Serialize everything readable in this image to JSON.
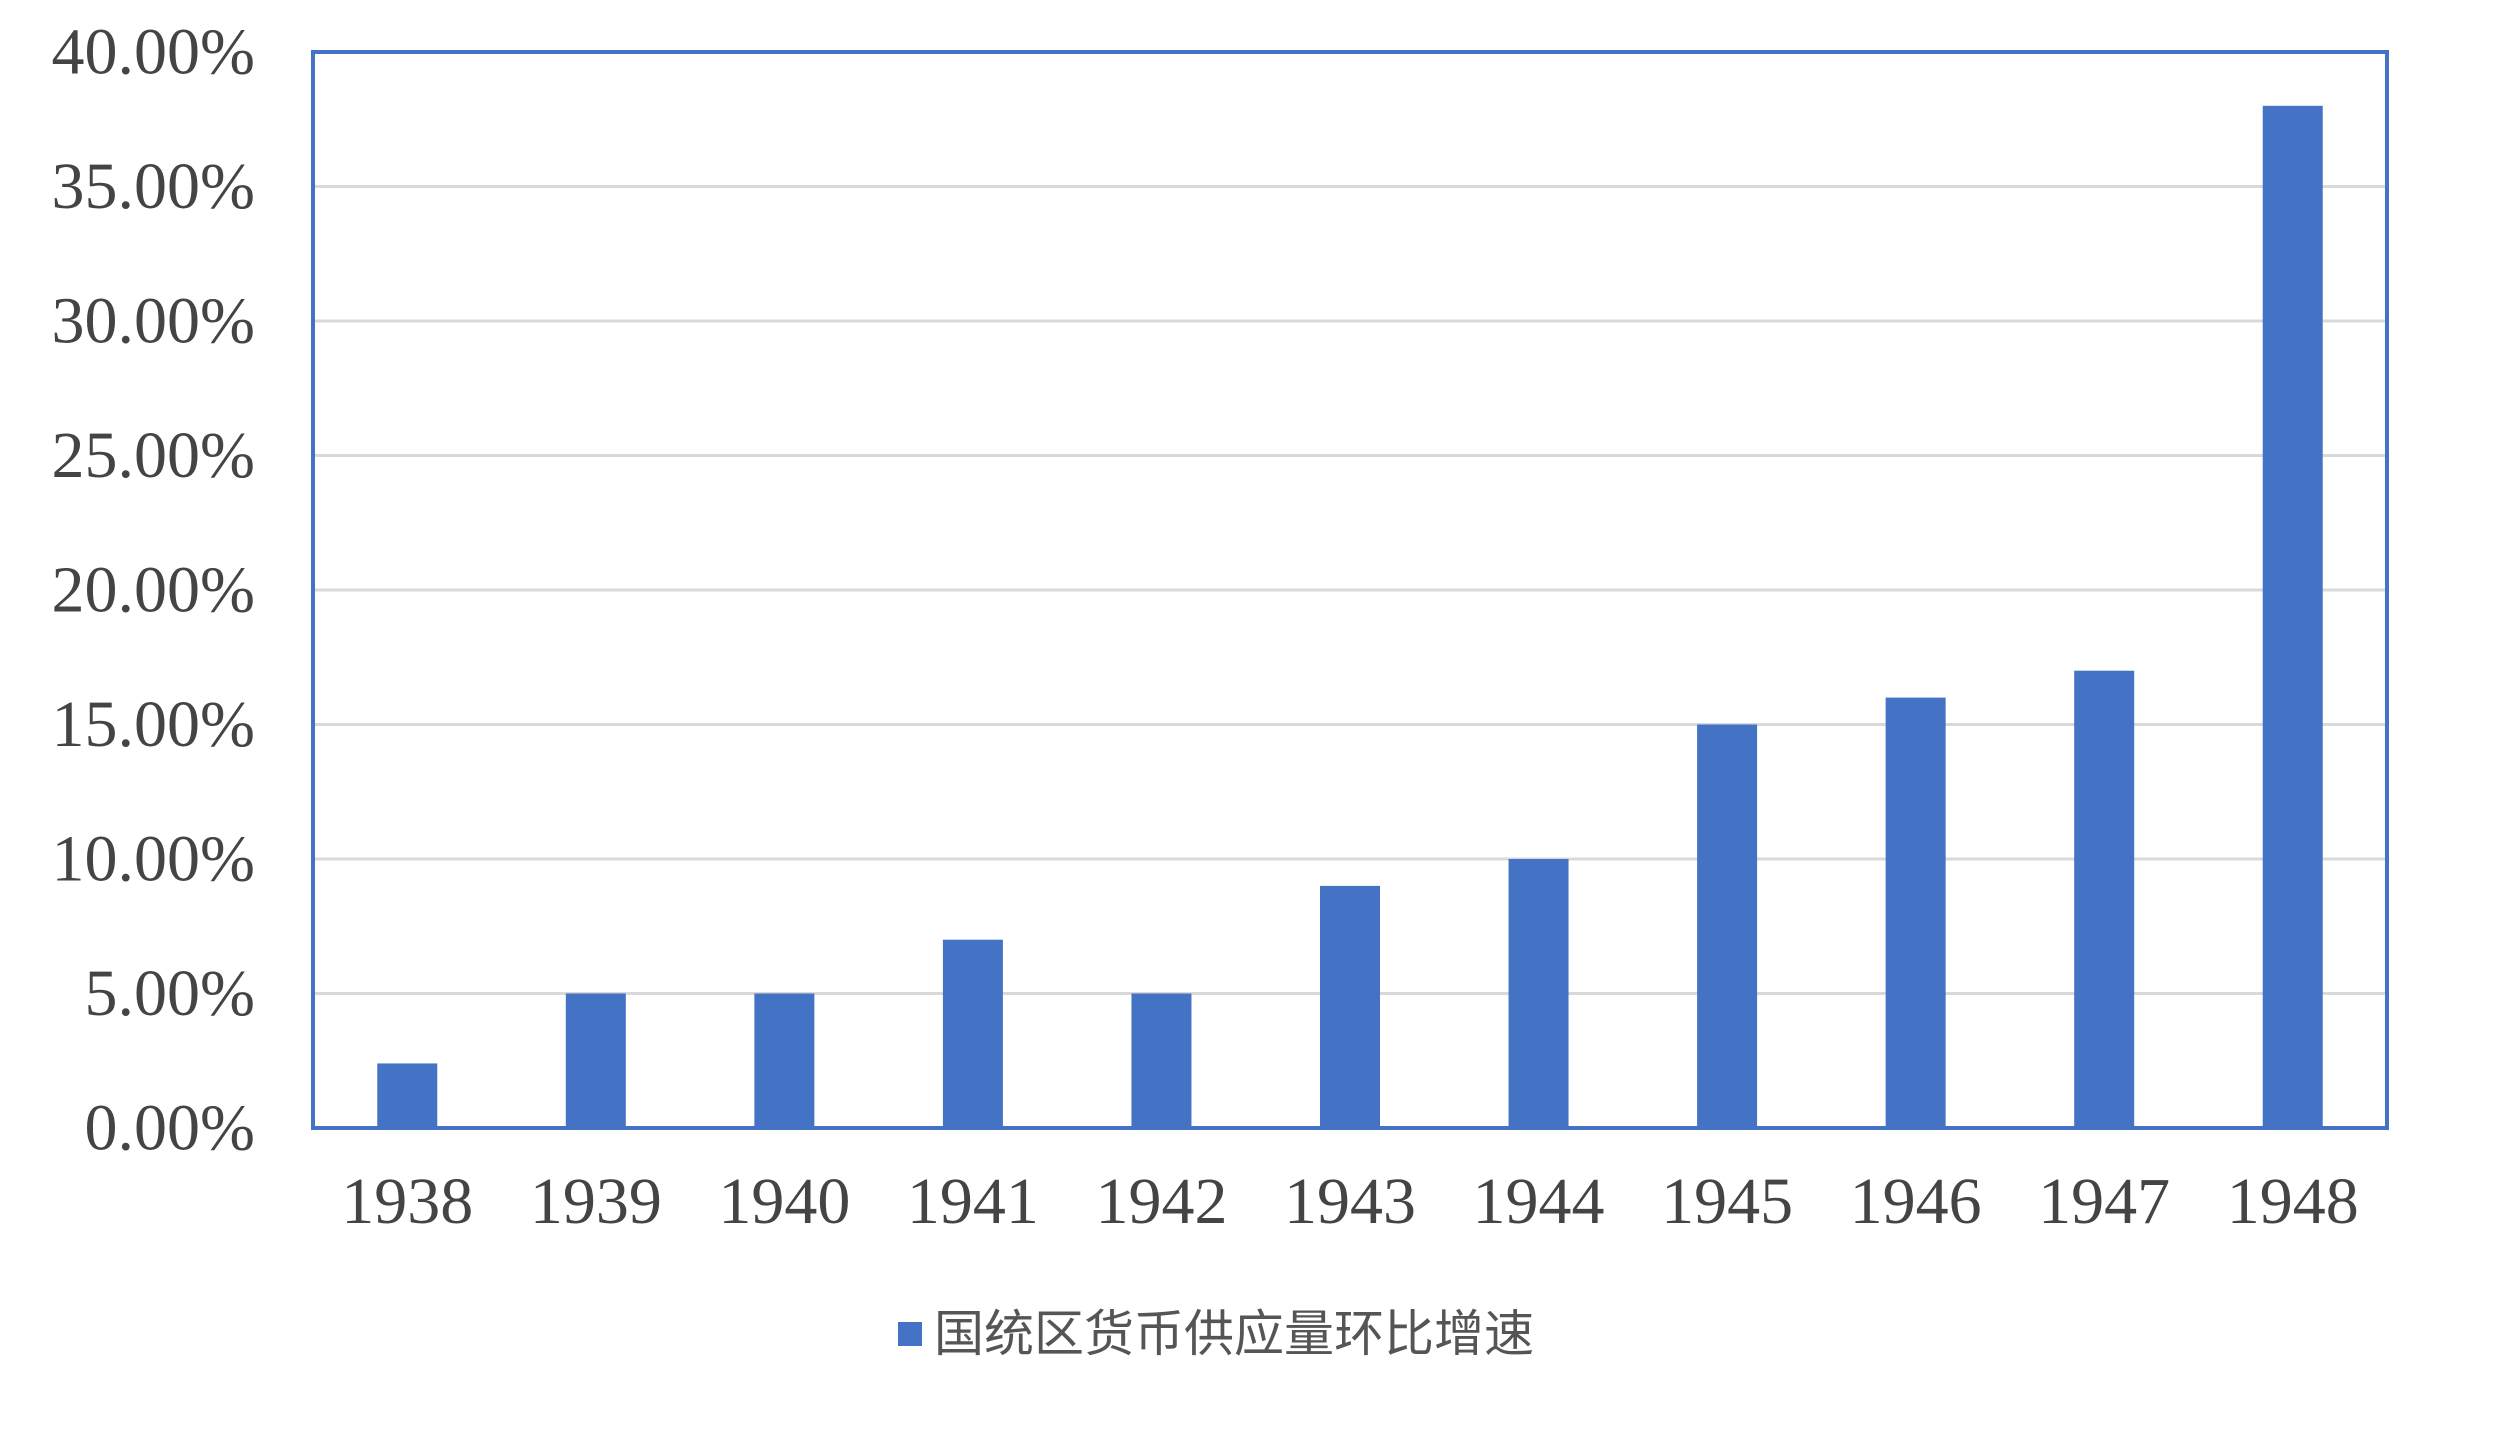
{
  "chart_data": {
    "type": "bar",
    "categories": [
      "1938",
      "1939",
      "1940",
      "1941",
      "1942",
      "1943",
      "1944",
      "1945",
      "1946",
      "1947",
      "1948"
    ],
    "series": [
      {
        "name": "国统区货币供应量环比增速",
        "values": [
          2.4,
          5.0,
          5.0,
          7.0,
          5.0,
          9.0,
          10.0,
          15.0,
          16.0,
          17.0,
          38.0
        ],
        "color": "#4472C4"
      }
    ],
    "y_ticks": [
      "0.00%",
      "5.00%",
      "10.00%",
      "15.00%",
      "20.00%",
      "25.00%",
      "30.00%",
      "35.00%",
      "40.00%"
    ],
    "ylim": [
      0,
      40
    ],
    "grid": true,
    "legend": "bottom",
    "frame_color": "#4472C4",
    "grid_color": "#D9D9D9"
  }
}
